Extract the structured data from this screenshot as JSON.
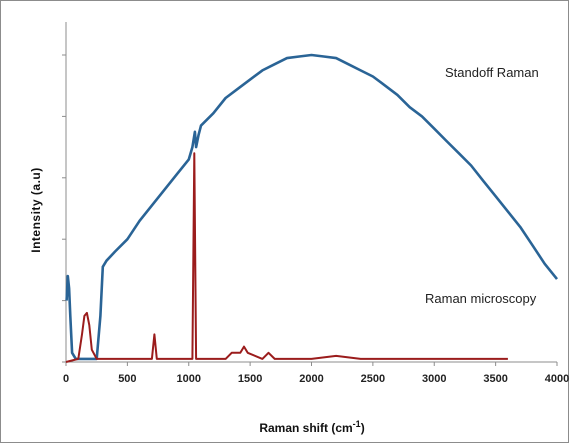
{
  "chart_data": {
    "type": "line",
    "xlabel": "Raman shift (cm",
    "xlabel_sup": "-1",
    "xlabel_close": ")",
    "ylabel": "Intensity (a.u)",
    "xlim": [
      0,
      4000
    ],
    "ylim": [
      0,
      100
    ],
    "x_ticks": [
      0,
      500,
      1000,
      1500,
      2000,
      2500,
      3000,
      3500,
      4000
    ],
    "x_tick_labels": [
      "0",
      "500",
      "1000",
      "1500",
      "2000",
      "2500",
      "3000",
      "3500",
      "4000"
    ],
    "y_ticks": [
      0,
      20,
      40,
      60,
      80,
      100
    ],
    "grid": false,
    "annotations": [
      "Standoff  Raman",
      "Raman microscopy"
    ],
    "series": [
      {
        "name": "Standoff  Raman",
        "color": "#2a6496",
        "x": [
          5,
          15,
          25,
          35,
          50,
          80,
          150,
          250,
          280,
          300,
          330,
          400,
          500,
          600,
          700,
          800,
          900,
          1000,
          1030,
          1050,
          1060,
          1080,
          1100,
          1200,
          1300,
          1400,
          1500,
          1600,
          1700,
          1800,
          1900,
          2000,
          2100,
          2200,
          2300,
          2400,
          2500,
          2600,
          2700,
          2800,
          2900,
          3000,
          3100,
          3200,
          3300,
          3400,
          3500,
          3600,
          3700,
          3800,
          3900,
          4000
        ],
        "y": [
          20,
          28,
          24,
          15,
          3,
          1,
          1,
          1,
          15,
          31,
          33,
          36,
          40,
          46,
          51,
          56,
          61,
          66,
          70,
          75,
          70,
          74,
          77,
          81,
          86,
          89,
          92,
          95,
          97,
          99,
          99.5,
          100,
          99.5,
          99,
          97,
          95,
          93,
          90,
          87,
          83,
          80,
          76,
          72,
          68,
          64,
          59,
          54,
          49,
          44,
          38,
          32,
          27
        ]
      },
      {
        "name": "Raman microscopy",
        "color": "#9b1c1c",
        "x": [
          0,
          100,
          130,
          150,
          170,
          190,
          210,
          250,
          300,
          400,
          600,
          700,
          720,
          740,
          900,
          1000,
          1030,
          1045,
          1060,
          1080,
          1200,
          1300,
          1350,
          1420,
          1450,
          1480,
          1600,
          1650,
          1700,
          1800,
          2000,
          2200,
          2400,
          2600,
          2800,
          3000,
          3200,
          3400,
          3600
        ],
        "y": [
          0,
          1,
          9,
          15,
          16,
          12,
          4,
          1,
          1,
          1,
          1,
          1,
          9,
          1,
          1,
          1,
          1,
          68,
          1,
          1,
          1,
          1,
          3,
          3,
          5,
          3,
          1,
          3,
          1,
          1,
          1,
          2,
          1,
          1,
          1,
          1,
          1,
          1,
          1
        ]
      }
    ]
  }
}
